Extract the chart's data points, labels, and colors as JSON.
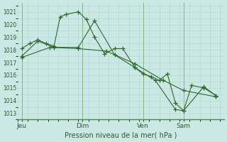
{
  "xlabel": "Pression niveau de la mer( hPa )",
  "background_color": "#cbe8e4",
  "grid_color": "#b0d8d0",
  "line_color": "#2d6a2d",
  "border_color": "#4a8a4a",
  "ylim": [
    1012.5,
    1021.7
  ],
  "yticks": [
    1013,
    1014,
    1015,
    1016,
    1017,
    1018,
    1019,
    1020,
    1021
  ],
  "xtick_labels": [
    "Jeu",
    "Dim",
    "Ven",
    "Sam"
  ],
  "xtick_positions": [
    0,
    30,
    60,
    80
  ],
  "xlim": [
    -2,
    100
  ],
  "series1_x": [
    0,
    4,
    8,
    12,
    16,
    19,
    22,
    28,
    32,
    36,
    41,
    46,
    50,
    56,
    60,
    64,
    68,
    72,
    76,
    80,
    84,
    90,
    96
  ],
  "series1_y": [
    1018.1,
    1018.5,
    1018.8,
    1018.5,
    1018.3,
    1020.6,
    1020.8,
    1021.0,
    1020.4,
    1019.0,
    1017.7,
    1018.1,
    1018.1,
    1016.6,
    1016.1,
    1015.9,
    1015.6,
    1016.1,
    1013.8,
    1013.2,
    1015.2,
    1015.0,
    1014.4
  ],
  "series2_x": [
    0,
    8,
    16,
    28,
    36,
    46,
    56,
    66,
    76,
    80,
    90,
    96
  ],
  "series2_y": [
    1017.5,
    1018.7,
    1018.2,
    1018.2,
    1020.3,
    1017.6,
    1016.6,
    1015.6,
    1013.3,
    1013.2,
    1015.1,
    1014.4
  ],
  "series3_x": [
    0,
    14,
    28,
    42,
    56,
    70,
    80,
    96
  ],
  "series3_y": [
    1017.4,
    1018.2,
    1018.1,
    1017.9,
    1016.9,
    1015.6,
    1014.8,
    1014.3
  ],
  "vline_positions": [
    0,
    30,
    60,
    80
  ],
  "marker": "+",
  "markersize": 4,
  "linewidth": 0.8
}
